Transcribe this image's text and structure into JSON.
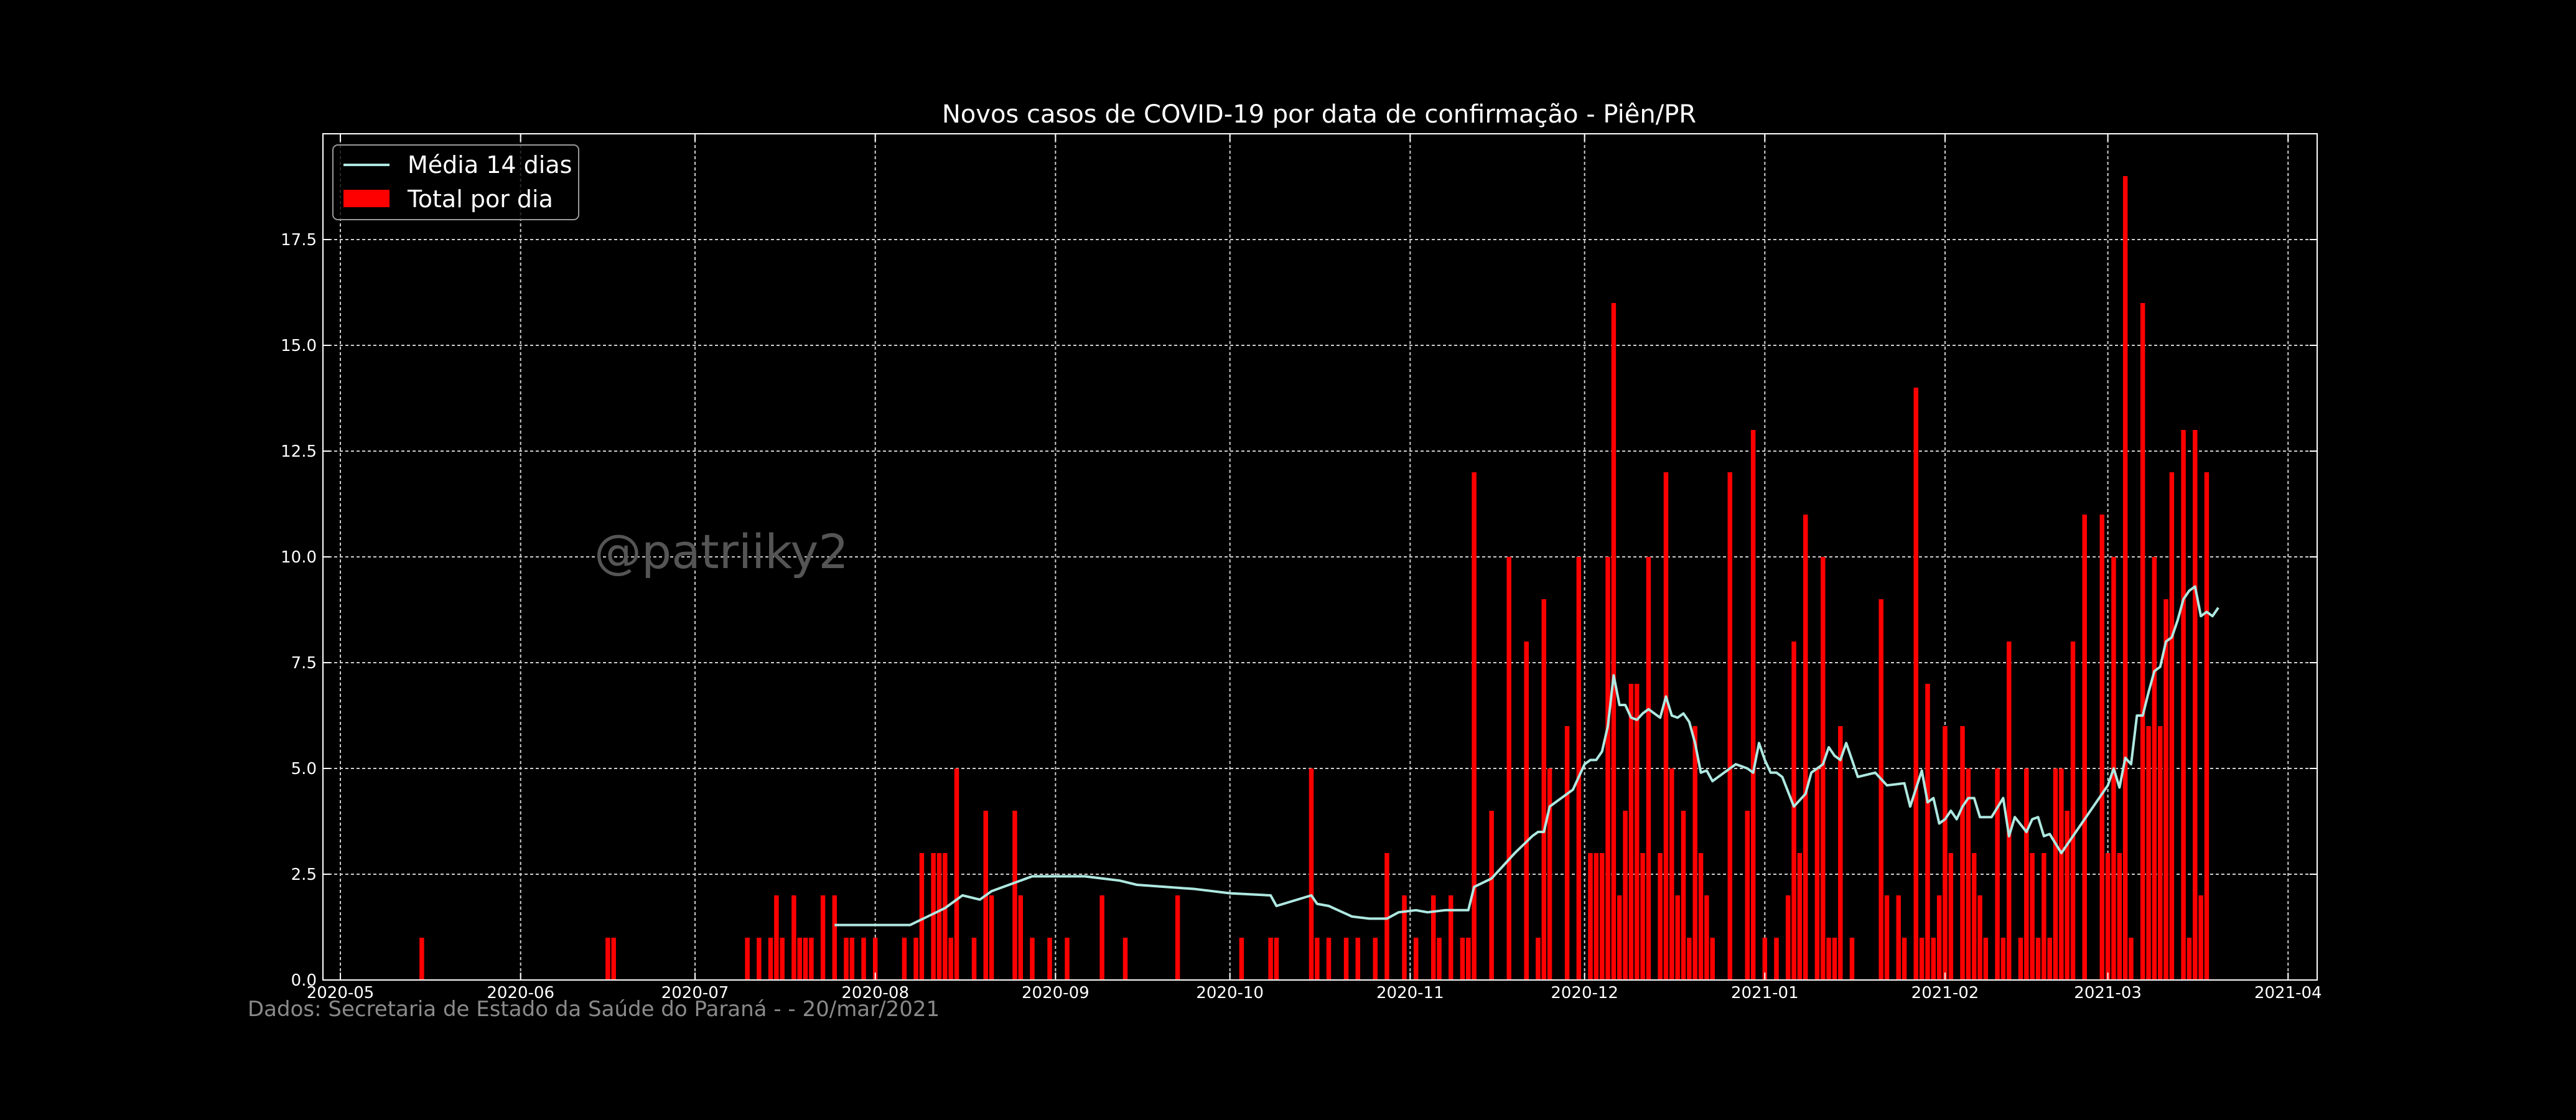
{
  "colors": {
    "background": "#000000",
    "bar": "#ff0000",
    "line": "#aee8e0",
    "grid": "#cfcfcf",
    "text": "#ffffff",
    "watermark": "#555555",
    "footer": "#8a8a8a"
  },
  "watermark": "@patriiky2",
  "footer": "Dados: Secretaria de Estado da Saúde do Paraná -  - 20/mar/2021",
  "chart_data": {
    "type": "bar",
    "title": "Novos casos de COVID-19 por data de confirmação - Piên/PR",
    "xlabel": "",
    "ylabel": "",
    "x_range": [
      "2020-04-28",
      "2021-04-06"
    ],
    "ylim": [
      0,
      20
    ],
    "y_ticks": [
      0.0,
      2.5,
      5.0,
      7.5,
      10.0,
      12.5,
      15.0,
      17.5
    ],
    "y_tick_labels": [
      "0.0",
      "2.5",
      "5.0",
      "7.5",
      "10.0",
      "12.5",
      "15.0",
      "17.5"
    ],
    "x_ticks": [
      "2020-05-01",
      "2020-06-01",
      "2020-07-01",
      "2020-08-01",
      "2020-09-01",
      "2020-10-01",
      "2020-11-01",
      "2020-12-01",
      "2021-01-01",
      "2021-02-01",
      "2021-03-01",
      "2021-04-01"
    ],
    "x_tick_labels": [
      "2020-05",
      "2020-06",
      "2020-07",
      "2020-08",
      "2020-09",
      "2020-10",
      "2020-11",
      "2020-12",
      "2021-01",
      "2021-02",
      "2021-03",
      "2021-04"
    ],
    "grid": true,
    "legend_position": "top-left",
    "legend": [
      "Média 14 dias",
      "Total por dia"
    ],
    "series": [
      {
        "name": "Total por dia",
        "type": "bar",
        "data": [
          [
            "2020-05-15",
            1
          ],
          [
            "2020-06-16",
            1
          ],
          [
            "2020-06-17",
            1
          ],
          [
            "2020-07-10",
            1
          ],
          [
            "2020-07-12",
            1
          ],
          [
            "2020-07-14",
            1
          ],
          [
            "2020-07-15",
            2
          ],
          [
            "2020-07-16",
            1
          ],
          [
            "2020-07-18",
            2
          ],
          [
            "2020-07-19",
            1
          ],
          [
            "2020-07-20",
            1
          ],
          [
            "2020-07-21",
            1
          ],
          [
            "2020-07-23",
            2
          ],
          [
            "2020-07-25",
            2
          ],
          [
            "2020-07-27",
            1
          ],
          [
            "2020-07-28",
            1
          ],
          [
            "2020-07-30",
            1
          ],
          [
            "2020-08-01",
            1
          ],
          [
            "2020-08-06",
            1
          ],
          [
            "2020-08-08",
            1
          ],
          [
            "2020-08-09",
            3
          ],
          [
            "2020-08-11",
            3
          ],
          [
            "2020-08-12",
            3
          ],
          [
            "2020-08-13",
            3
          ],
          [
            "2020-08-14",
            1
          ],
          [
            "2020-08-15",
            5
          ],
          [
            "2020-08-18",
            1
          ],
          [
            "2020-08-20",
            4
          ],
          [
            "2020-08-21",
            2
          ],
          [
            "2020-08-25",
            4
          ],
          [
            "2020-08-26",
            2
          ],
          [
            "2020-08-28",
            1
          ],
          [
            "2020-08-31",
            1
          ],
          [
            "2020-09-03",
            1
          ],
          [
            "2020-09-09",
            2
          ],
          [
            "2020-09-13",
            1
          ],
          [
            "2020-09-22",
            2
          ],
          [
            "2020-10-03",
            1
          ],
          [
            "2020-10-08",
            1
          ],
          [
            "2020-10-09",
            1
          ],
          [
            "2020-10-15",
            5
          ],
          [
            "2020-10-16",
            1
          ],
          [
            "2020-10-18",
            1
          ],
          [
            "2020-10-21",
            1
          ],
          [
            "2020-10-23",
            1
          ],
          [
            "2020-10-26",
            1
          ],
          [
            "2020-10-28",
            3
          ],
          [
            "2020-10-31",
            2
          ],
          [
            "2020-11-02",
            1
          ],
          [
            "2020-11-05",
            2
          ],
          [
            "2020-11-06",
            1
          ],
          [
            "2020-11-08",
            2
          ],
          [
            "2020-11-10",
            1
          ],
          [
            "2020-11-11",
            1
          ],
          [
            "2020-11-12",
            12
          ],
          [
            "2020-11-15",
            4
          ],
          [
            "2020-11-18",
            10
          ],
          [
            "2020-11-21",
            8
          ],
          [
            "2020-11-23",
            1
          ],
          [
            "2020-11-24",
            9
          ],
          [
            "2020-11-25",
            5
          ],
          [
            "2020-11-28",
            6
          ],
          [
            "2020-11-30",
            10
          ],
          [
            "2020-12-02",
            3
          ],
          [
            "2020-12-03",
            3
          ],
          [
            "2020-12-04",
            3
          ],
          [
            "2020-12-05",
            10
          ],
          [
            "2020-12-06",
            16
          ],
          [
            "2020-12-07",
            2
          ],
          [
            "2020-12-08",
            4
          ],
          [
            "2020-12-09",
            7
          ],
          [
            "2020-12-10",
            7
          ],
          [
            "2020-12-11",
            3
          ],
          [
            "2020-12-12",
            10
          ],
          [
            "2020-12-14",
            3
          ],
          [
            "2020-12-15",
            12
          ],
          [
            "2020-12-16",
            5
          ],
          [
            "2020-12-17",
            2
          ],
          [
            "2020-12-18",
            4
          ],
          [
            "2020-12-19",
            1
          ],
          [
            "2020-12-20",
            6
          ],
          [
            "2020-12-21",
            3
          ],
          [
            "2020-12-22",
            2
          ],
          [
            "2020-12-23",
            1
          ],
          [
            "2020-12-26",
            12
          ],
          [
            "2020-12-29",
            4
          ],
          [
            "2020-12-30",
            13
          ],
          [
            "2021-01-01",
            1
          ],
          [
            "2021-01-03",
            1
          ],
          [
            "2021-01-05",
            2
          ],
          [
            "2021-01-06",
            8
          ],
          [
            "2021-01-07",
            3
          ],
          [
            "2021-01-08",
            11
          ],
          [
            "2021-01-10",
            5
          ],
          [
            "2021-01-11",
            10
          ],
          [
            "2021-01-12",
            1
          ],
          [
            "2021-01-13",
            1
          ],
          [
            "2021-01-14",
            6
          ],
          [
            "2021-01-16",
            1
          ],
          [
            "2021-01-21",
            9
          ],
          [
            "2021-01-22",
            2
          ],
          [
            "2021-01-24",
            2
          ],
          [
            "2021-01-25",
            1
          ],
          [
            "2021-01-27",
            14
          ],
          [
            "2021-01-28",
            1
          ],
          [
            "2021-01-29",
            7
          ],
          [
            "2021-01-30",
            1
          ],
          [
            "2021-01-31",
            2
          ],
          [
            "2021-02-01",
            6
          ],
          [
            "2021-02-02",
            3
          ],
          [
            "2021-02-04",
            6
          ],
          [
            "2021-02-05",
            5
          ],
          [
            "2021-02-06",
            3
          ],
          [
            "2021-02-07",
            2
          ],
          [
            "2021-02-08",
            1
          ],
          [
            "2021-02-10",
            5
          ],
          [
            "2021-02-11",
            1
          ],
          [
            "2021-02-12",
            8
          ],
          [
            "2021-02-14",
            1
          ],
          [
            "2021-02-15",
            5
          ],
          [
            "2021-02-16",
            3
          ],
          [
            "2021-02-17",
            1
          ],
          [
            "2021-02-18",
            3
          ],
          [
            "2021-02-19",
            1
          ],
          [
            "2021-02-20",
            5
          ],
          [
            "2021-02-21",
            5
          ],
          [
            "2021-02-22",
            4
          ],
          [
            "2021-02-23",
            8
          ],
          [
            "2021-02-25",
            11
          ],
          [
            "2021-02-28",
            11
          ],
          [
            "2021-03-01",
            3
          ],
          [
            "2021-03-02",
            10
          ],
          [
            "2021-03-03",
            3
          ],
          [
            "2021-03-04",
            19
          ],
          [
            "2021-03-05",
            1
          ],
          [
            "2021-03-07",
            16
          ],
          [
            "2021-03-08",
            6
          ],
          [
            "2021-03-09",
            10
          ],
          [
            "2021-03-10",
            6
          ],
          [
            "2021-03-11",
            9
          ],
          [
            "2021-03-12",
            12
          ],
          [
            "2021-03-14",
            13
          ],
          [
            "2021-03-15",
            1
          ],
          [
            "2021-03-16",
            13
          ],
          [
            "2021-03-17",
            2
          ],
          [
            "2021-03-18",
            12
          ]
        ]
      },
      {
        "name": "Média 14 dias",
        "type": "line",
        "data": [
          [
            "2020-07-25",
            1.3
          ],
          [
            "2020-08-07",
            1.3
          ],
          [
            "2020-08-10",
            1.5
          ],
          [
            "2020-08-13",
            1.7
          ],
          [
            "2020-08-14",
            1.8
          ],
          [
            "2020-08-16",
            2.0
          ],
          [
            "2020-08-19",
            1.9
          ],
          [
            "2020-08-21",
            2.1
          ],
          [
            "2020-08-25",
            2.3
          ],
          [
            "2020-08-28",
            2.45
          ],
          [
            "2020-09-06",
            2.45
          ],
          [
            "2020-09-12",
            2.35
          ],
          [
            "2020-09-15",
            2.25
          ],
          [
            "2020-09-25",
            2.15
          ],
          [
            "2020-10-01",
            2.05
          ],
          [
            "2020-10-08",
            2.0
          ],
          [
            "2020-10-09",
            1.75
          ],
          [
            "2020-10-15",
            2.0
          ],
          [
            "2020-10-16",
            1.8
          ],
          [
            "2020-10-18",
            1.75
          ],
          [
            "2020-10-22",
            1.5
          ],
          [
            "2020-10-25",
            1.45
          ],
          [
            "2020-10-28",
            1.45
          ],
          [
            "2020-10-30",
            1.6
          ],
          [
            "2020-11-02",
            1.65
          ],
          [
            "2020-11-04",
            1.6
          ],
          [
            "2020-11-07",
            1.65
          ],
          [
            "2020-11-10",
            1.65
          ],
          [
            "2020-11-11",
            1.65
          ],
          [
            "2020-11-12",
            2.2
          ],
          [
            "2020-11-15",
            2.4
          ],
          [
            "2020-11-19",
            3.0
          ],
          [
            "2020-11-22",
            3.4
          ],
          [
            "2020-11-23",
            3.5
          ],
          [
            "2020-11-24",
            3.5
          ],
          [
            "2020-11-25",
            4.1
          ],
          [
            "2020-11-27",
            4.3
          ],
          [
            "2020-11-29",
            4.5
          ],
          [
            "2020-12-01",
            5.1
          ],
          [
            "2020-12-02",
            5.2
          ],
          [
            "2020-12-03",
            5.2
          ],
          [
            "2020-12-04",
            5.4
          ],
          [
            "2020-12-05",
            6.0
          ],
          [
            "2020-12-06",
            7.2
          ],
          [
            "2020-12-07",
            6.5
          ],
          [
            "2020-12-08",
            6.5
          ],
          [
            "2020-12-09",
            6.2
          ],
          [
            "2020-12-10",
            6.15
          ],
          [
            "2020-12-11",
            6.3
          ],
          [
            "2020-12-12",
            6.4
          ],
          [
            "2020-12-13",
            6.3
          ],
          [
            "2020-12-14",
            6.2
          ],
          [
            "2020-12-15",
            6.7
          ],
          [
            "2020-12-16",
            6.25
          ],
          [
            "2020-12-17",
            6.2
          ],
          [
            "2020-12-18",
            6.3
          ],
          [
            "2020-12-19",
            6.1
          ],
          [
            "2020-12-20",
            5.6
          ],
          [
            "2020-12-21",
            4.9
          ],
          [
            "2020-12-22",
            4.95
          ],
          [
            "2020-12-23",
            4.7
          ],
          [
            "2020-12-25",
            4.9
          ],
          [
            "2020-12-27",
            5.1
          ],
          [
            "2020-12-29",
            5.0
          ],
          [
            "2020-12-30",
            4.9
          ],
          [
            "2020-12-31",
            5.6
          ],
          [
            "2021-01-01",
            5.2
          ],
          [
            "2021-01-02",
            4.9
          ],
          [
            "2021-01-03",
            4.9
          ],
          [
            "2021-01-04",
            4.8
          ],
          [
            "2021-01-06",
            4.1
          ],
          [
            "2021-01-08",
            4.4
          ],
          [
            "2021-01-09",
            4.9
          ],
          [
            "2021-01-10",
            5.0
          ],
          [
            "2021-01-11",
            5.1
          ],
          [
            "2021-01-12",
            5.5
          ],
          [
            "2021-01-13",
            5.3
          ],
          [
            "2021-01-14",
            5.2
          ],
          [
            "2021-01-15",
            5.6
          ],
          [
            "2021-01-17",
            4.8
          ],
          [
            "2021-01-20",
            4.9
          ],
          [
            "2021-01-22",
            4.6
          ],
          [
            "2021-01-25",
            4.65
          ],
          [
            "2021-01-26",
            4.1
          ],
          [
            "2021-01-28",
            4.95
          ],
          [
            "2021-01-29",
            4.2
          ],
          [
            "2021-01-30",
            4.3
          ],
          [
            "2021-01-31",
            3.7
          ],
          [
            "2021-02-01",
            3.8
          ],
          [
            "2021-02-02",
            4.0
          ],
          [
            "2021-02-03",
            3.8
          ],
          [
            "2021-02-04",
            4.1
          ],
          [
            "2021-02-05",
            4.3
          ],
          [
            "2021-02-06",
            4.3
          ],
          [
            "2021-02-07",
            3.85
          ],
          [
            "2021-02-09",
            3.85
          ],
          [
            "2021-02-11",
            4.3
          ],
          [
            "2021-02-12",
            3.4
          ],
          [
            "2021-02-13",
            3.85
          ],
          [
            "2021-02-15",
            3.5
          ],
          [
            "2021-02-16",
            3.8
          ],
          [
            "2021-02-17",
            3.85
          ],
          [
            "2021-02-18",
            3.4
          ],
          [
            "2021-02-19",
            3.45
          ],
          [
            "2021-02-21",
            3.0
          ],
          [
            "2021-02-23",
            3.4
          ],
          [
            "2021-02-25",
            3.8
          ],
          [
            "2021-03-01",
            4.6
          ],
          [
            "2021-03-02",
            5.0
          ],
          [
            "2021-03-03",
            4.55
          ],
          [
            "2021-03-04",
            5.25
          ],
          [
            "2021-03-05",
            5.1
          ],
          [
            "2021-03-06",
            6.25
          ],
          [
            "2021-03-07",
            6.25
          ],
          [
            "2021-03-08",
            6.8
          ],
          [
            "2021-03-09",
            7.3
          ],
          [
            "2021-03-10",
            7.4
          ],
          [
            "2021-03-11",
            8.0
          ],
          [
            "2021-03-12",
            8.1
          ],
          [
            "2021-03-13",
            8.5
          ],
          [
            "2021-03-14",
            9.0
          ],
          [
            "2021-03-15",
            9.2
          ],
          [
            "2021-03-16",
            9.3
          ],
          [
            "2021-03-17",
            8.6
          ],
          [
            "2021-03-18",
            8.7
          ],
          [
            "2021-03-19",
            8.6
          ],
          [
            "2021-03-20",
            8.8
          ]
        ]
      }
    ]
  }
}
